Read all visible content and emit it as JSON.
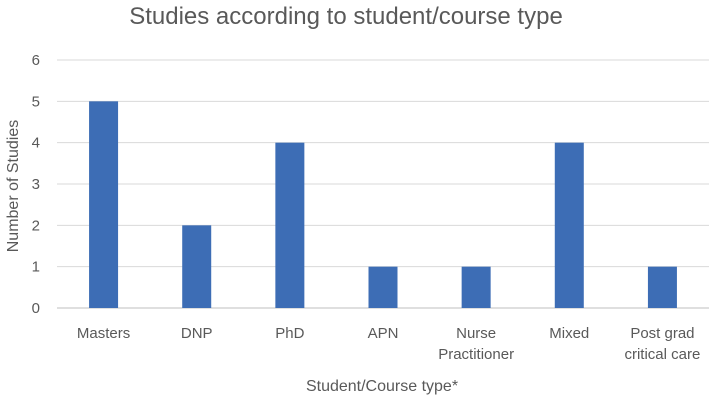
{
  "chart_data": {
    "type": "bar",
    "title": "Studies according to student/course type",
    "xlabel": "Student/Course type*",
    "ylabel": "Number of Studies",
    "categories": [
      [
        "Masters"
      ],
      [
        "DNP"
      ],
      [
        "PhD"
      ],
      [
        "APN"
      ],
      [
        "Nurse",
        "Practitioner"
      ],
      [
        "Mixed"
      ],
      [
        "Post grad",
        "critical care"
      ]
    ],
    "values": [
      5,
      2,
      4,
      1,
      1,
      4,
      1
    ],
    "ylim": [
      0,
      6
    ],
    "yticks": [
      0,
      1,
      2,
      3,
      4,
      5,
      6
    ],
    "grid": true,
    "legend": "none",
    "colors": {
      "bar": "#3d6db5",
      "text": "#595959",
      "grid": "#d9d9d9",
      "axis": "#bfbfbf"
    }
  }
}
